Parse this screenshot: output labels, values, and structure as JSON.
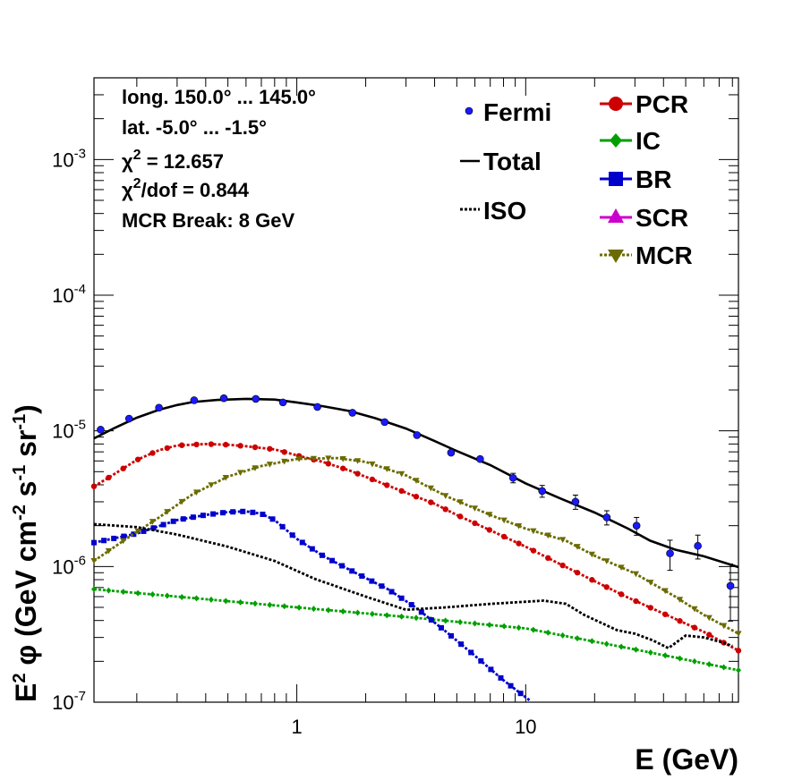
{
  "chart_data": {
    "type": "line",
    "xscale": "log",
    "yscale": "log",
    "xlim": [
      0.13,
      85
    ],
    "ylim": [
      1e-07,
      0.004
    ],
    "xlabel": "E (GeV)",
    "ylabel": "E² φ (GeV cm⁻² s⁻¹ sr⁻¹)",
    "x_tick_labels": [
      {
        "v": 1,
        "text": "1"
      },
      {
        "v": 10,
        "text": "10"
      }
    ],
    "y_tick_labels": [
      {
        "v": 1e-07,
        "base": "10",
        "exp": "-7"
      },
      {
        "v": 1e-06,
        "base": "10",
        "exp": "-6"
      },
      {
        "v": 1e-05,
        "base": "10",
        "exp": "-5"
      },
      {
        "v": 0.0001,
        "base": "10",
        "exp": "-4"
      },
      {
        "v": 0.001,
        "base": "10",
        "exp": "-3"
      }
    ],
    "annotations": {
      "longitude": "long. 150.0° ... 145.0°",
      "latitude": "lat. -5.0° ... -1.5°",
      "chi2_sym": "χ",
      "chi2_sup": "2",
      "chi2_val": " = 12.657",
      "chidof_sym": "χ",
      "chidof_sup": "2",
      "chidof_val": "/dof = 0.844",
      "break": "MCR Break:  8 GeV"
    },
    "legend": {
      "fermi": "Fermi",
      "total": "Total",
      "iso": "ISO",
      "pcr": "PCR",
      "ic": "IC",
      "br": "BR",
      "scr": "SCR",
      "mcr": "MCR"
    },
    "fermi_points": [
      {
        "x": 0.139,
        "y": 1.02e-05,
        "err": 0
      },
      {
        "x": 0.185,
        "y": 1.23e-05,
        "err": 0
      },
      {
        "x": 0.25,
        "y": 1.48e-05,
        "err": 0
      },
      {
        "x": 0.356,
        "y": 1.68e-05,
        "err": 0
      },
      {
        "x": 0.48,
        "y": 1.74e-05,
        "err": 0
      },
      {
        "x": 0.662,
        "y": 1.72e-05,
        "err": 0
      },
      {
        "x": 0.87,
        "y": 1.62e-05,
        "err": 0
      },
      {
        "x": 1.23,
        "y": 1.5e-05,
        "err": 0
      },
      {
        "x": 1.75,
        "y": 1.36e-05,
        "err": 0
      },
      {
        "x": 2.42,
        "y": 1.16e-05,
        "err": 0
      },
      {
        "x": 3.35,
        "y": 9.3e-06,
        "err": 0
      },
      {
        "x": 4.72,
        "y": 6.9e-06,
        "err": 0
      },
      {
        "x": 6.32,
        "y": 6.2e-06,
        "err": 0
      },
      {
        "x": 8.81,
        "y": 4.5e-06,
        "err": 0.08
      },
      {
        "x": 11.8,
        "y": 3.6e-06,
        "err": 0.1
      },
      {
        "x": 16.5,
        "y": 3e-06,
        "err": 0.12
      },
      {
        "x": 22.6,
        "y": 2.3e-06,
        "err": 0.12
      },
      {
        "x": 30.5,
        "y": 2e-06,
        "err": 0.15
      },
      {
        "x": 42.7,
        "y": 1.25e-06,
        "err": 0.25
      },
      {
        "x": 56.5,
        "y": 1.42e-06,
        "err": 0.2
      },
      {
        "x": 78.4,
        "y": 7.2e-07,
        "err": 0.45
      }
    ],
    "series": [
      {
        "key": "total",
        "color": "#000000",
        "style": "solid",
        "marker": "none",
        "points": [
          [
            0.13,
            8.8e-06
          ],
          [
            0.16,
            1.05e-05
          ],
          [
            0.2,
            1.25e-05
          ],
          [
            0.25,
            1.43e-05
          ],
          [
            0.3,
            1.55e-05
          ],
          [
            0.35,
            1.63e-05
          ],
          [
            0.45,
            1.69e-05
          ],
          [
            0.6,
            1.72e-05
          ],
          [
            0.8,
            1.7e-05
          ],
          [
            1.0,
            1.62e-05
          ],
          [
            1.3,
            1.52e-05
          ],
          [
            1.7,
            1.4e-05
          ],
          [
            2.2,
            1.24e-05
          ],
          [
            3.0,
            1.04e-05
          ],
          [
            4.0,
            8.4e-06
          ],
          [
            5.0,
            7.1e-06
          ],
          [
            7.0,
            5.6e-06
          ],
          [
            10.0,
            4.1e-06
          ],
          [
            14.0,
            3.2e-06
          ],
          [
            20.0,
            2.5e-06
          ],
          [
            28.0,
            1.9e-06
          ],
          [
            35.0,
            1.55e-06
          ],
          [
            45.0,
            1.33e-06
          ],
          [
            60.0,
            1.19e-06
          ],
          [
            85.0,
            9.9e-07
          ]
        ]
      },
      {
        "key": "pcr",
        "color": "#cc0000",
        "style": "solid",
        "marker": "circle",
        "points": [
          [
            0.13,
            3.9e-06
          ],
          [
            0.15,
            4.5e-06
          ],
          [
            0.2,
            6.1e-06
          ],
          [
            0.25,
            7.2e-06
          ],
          [
            0.3,
            7.8e-06
          ],
          [
            0.4,
            8e-06
          ],
          [
            0.5,
            7.9e-06
          ],
          [
            0.6,
            7.7e-06
          ],
          [
            0.8,
            7.3e-06
          ],
          [
            1.0,
            6.6e-06
          ],
          [
            1.3,
            5.9e-06
          ],
          [
            1.7,
            5.1e-06
          ],
          [
            2.2,
            4.3e-06
          ],
          [
            3.0,
            3.5e-06
          ],
          [
            4.0,
            2.9e-06
          ],
          [
            5.0,
            2.4e-06
          ],
          [
            7.0,
            1.85e-06
          ],
          [
            10.0,
            1.4e-06
          ],
          [
            14.0,
            1.05e-06
          ],
          [
            20.0,
            7.8e-07
          ],
          [
            28.0,
            5.9e-07
          ],
          [
            40.0,
            4.5e-07
          ],
          [
            60.0,
            3.3e-07
          ],
          [
            85.0,
            2.4e-07
          ]
        ]
      },
      {
        "key": "ic",
        "color": "#00a000",
        "style": "solid",
        "marker": "diamond",
        "points": [
          [
            0.13,
            6.8e-07
          ],
          [
            0.3,
            6e-07
          ],
          [
            1.0,
            5e-07
          ],
          [
            3.0,
            4.25e-07
          ],
          [
            10.0,
            3.5e-07
          ],
          [
            30.0,
            2.45e-07
          ],
          [
            85.0,
            1.72e-07
          ]
        ]
      },
      {
        "key": "br",
        "color": "#0000cc",
        "style": "solid",
        "marker": "square",
        "points": [
          [
            0.13,
            1.5e-06
          ],
          [
            0.2,
            1.75e-06
          ],
          [
            0.3,
            2.2e-06
          ],
          [
            0.4,
            2.4e-06
          ],
          [
            0.5,
            2.52e-06
          ],
          [
            0.6,
            2.55e-06
          ],
          [
            0.7,
            2.45e-06
          ],
          [
            0.8,
            2.2e-06
          ],
          [
            1.0,
            1.6e-06
          ],
          [
            1.3,
            1.2e-06
          ],
          [
            1.8,
            9e-07
          ],
          [
            2.5,
            6.8e-07
          ],
          [
            3.3,
            5e-07
          ],
          [
            4.5,
            3.3e-07
          ],
          [
            6.0,
            2.2e-07
          ],
          [
            8.0,
            1.45e-07
          ],
          [
            10.5,
            1.02e-07
          ]
        ]
      },
      {
        "key": "mcr",
        "color": "#6b6b00",
        "style": "dotted",
        "marker": "triangle-down",
        "points": [
          [
            0.13,
            1.1e-06
          ],
          [
            0.18,
            1.6e-06
          ],
          [
            0.25,
            2.3e-06
          ],
          [
            0.35,
            3.4e-06
          ],
          [
            0.5,
            4.6e-06
          ],
          [
            0.7,
            5.5e-06
          ],
          [
            1.0,
            6.2e-06
          ],
          [
            1.5,
            6.3e-06
          ],
          [
            2.0,
            5.9e-06
          ],
          [
            3.0,
            4.7e-06
          ],
          [
            4.5,
            3.3e-06
          ],
          [
            7.0,
            2.4e-06
          ],
          [
            10.0,
            1.9e-06
          ],
          [
            15.0,
            1.55e-06
          ],
          [
            20.0,
            1.2e-06
          ],
          [
            30.0,
            8.9e-07
          ],
          [
            45.0,
            6e-07
          ],
          [
            60.0,
            4.4e-07
          ],
          [
            85.0,
            3.2e-07
          ]
        ]
      },
      {
        "key": "iso",
        "color": "#000000",
        "style": "dotted",
        "marker": "none",
        "points": [
          [
            0.13,
            2.05e-06
          ],
          [
            0.2,
            1.95e-06
          ],
          [
            0.3,
            1.72e-06
          ],
          [
            0.5,
            1.4e-06
          ],
          [
            0.8,
            1.1e-06
          ],
          [
            1.2,
            8.1e-07
          ],
          [
            2.0,
            6e-07
          ],
          [
            3.0,
            4.8e-07
          ],
          [
            4.5,
            5e-07
          ],
          [
            7.0,
            5.3e-07
          ],
          [
            10.0,
            5.5e-07
          ],
          [
            12.0,
            5.6e-07
          ],
          [
            15.0,
            5.3e-07
          ],
          [
            18.0,
            4.4e-07
          ],
          [
            25.0,
            3.4e-07
          ],
          [
            30.0,
            3.2e-07
          ],
          [
            36.0,
            2.85e-07
          ],
          [
            42.0,
            2.5e-07
          ],
          [
            50.0,
            3.1e-07
          ],
          [
            60.0,
            3e-07
          ],
          [
            70.0,
            2.8e-07
          ],
          [
            80.0,
            2.6e-07
          ]
        ]
      }
    ]
  }
}
